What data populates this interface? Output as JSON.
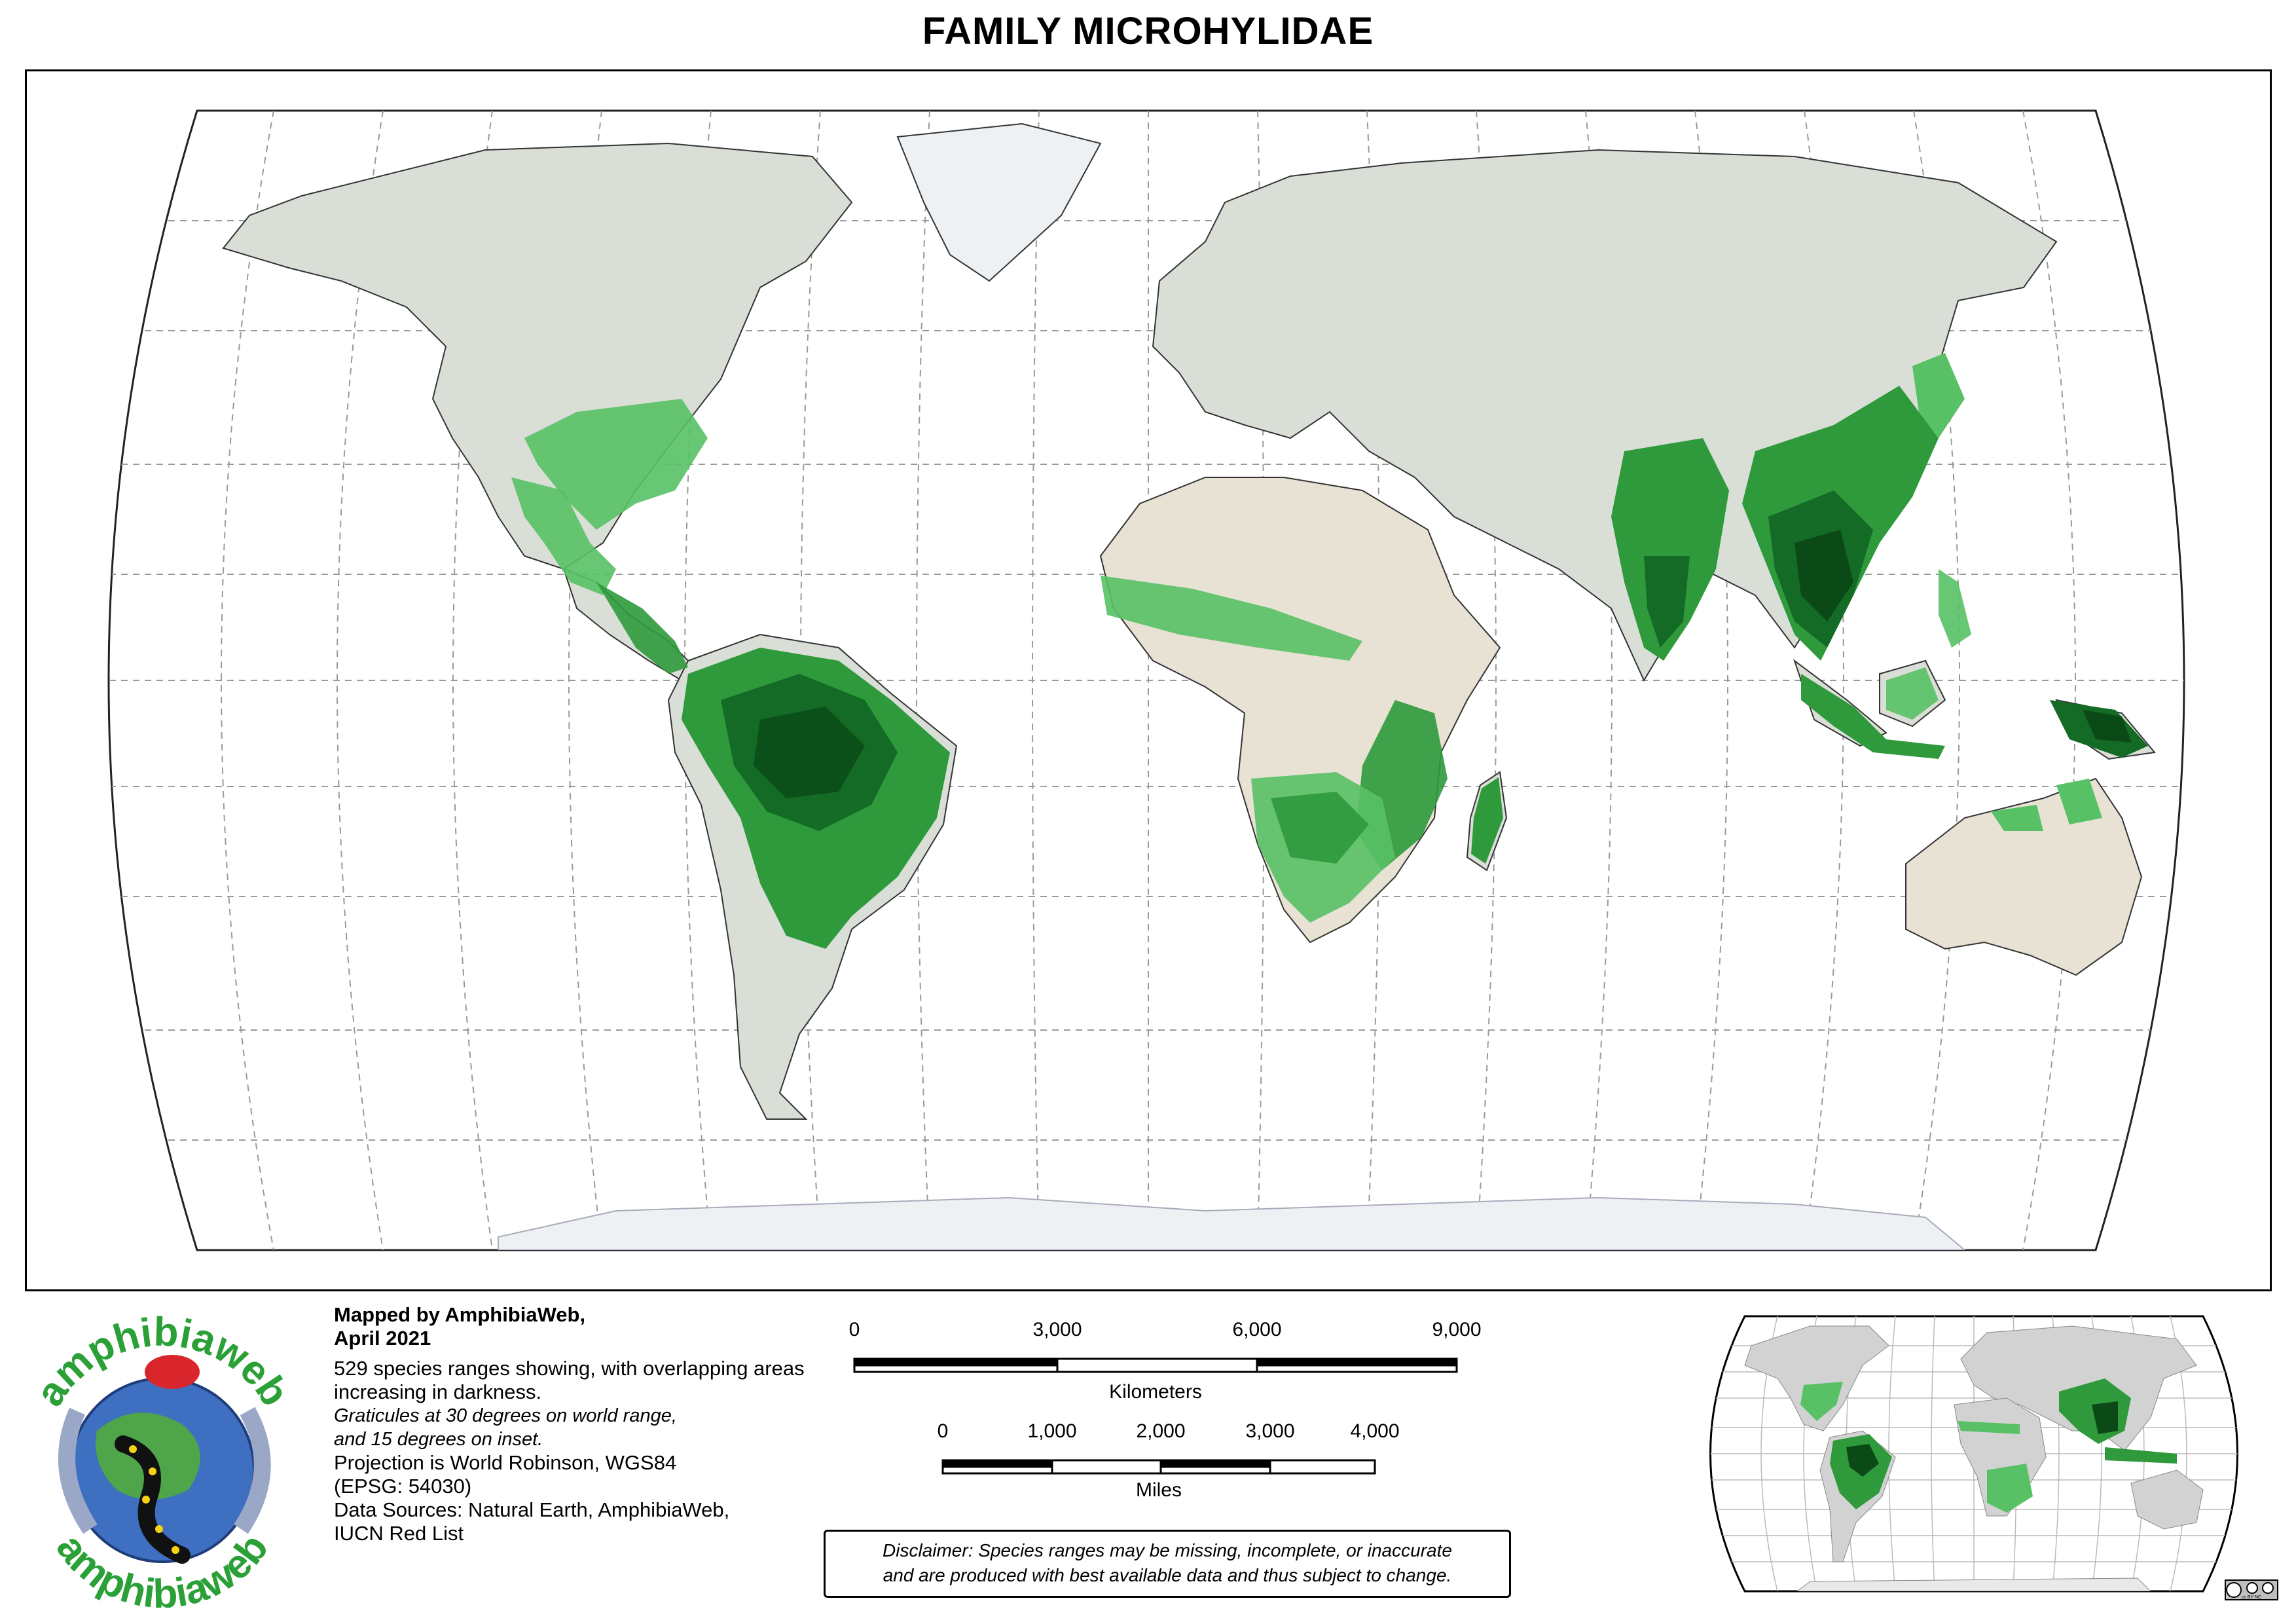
{
  "title": "FAMILY MICROHYLIDAE",
  "credits": {
    "mapped_by": "Mapped by AmphibiaWeb,",
    "date": "April 2021",
    "species_note": "529 species ranges showing, with overlapping areas increasing in darkness.",
    "graticule_note_1": "Graticules at 30 degrees on world range,",
    "graticule_note_2": "and 15 degrees on inset.",
    "projection_1": "Projection is World Robinson, WGS84",
    "projection_2": "(EPSG: 54030)",
    "sources_1": "Data Sources: Natural Earth, AmphibiaWeb,",
    "sources_2": "IUCN Red List"
  },
  "logo": {
    "wordmark_top": "amphibiaweb",
    "wordmark_bottom": "amphibiaweb"
  },
  "scale_bars": {
    "km_ticks": [
      "0",
      "3,000",
      "6,000",
      "9,000"
    ],
    "km_label": "Kilometers",
    "mi_ticks": [
      "0",
      "1,000",
      "2,000",
      "3,000",
      "4,000"
    ],
    "mi_label": "Miles"
  },
  "disclaimer": {
    "line1": "Disclaimer: Species ranges may be missing, incomplete, or inaccurate",
    "line2": "and are produced with best available data and thus subject to change."
  },
  "license": {
    "badge": "cc BY NC"
  },
  "legend_colors": {
    "land": "#d9ded6",
    "desert": "#e8e2d4",
    "ice": "#eef1f4",
    "range_light": "#58c165",
    "range_mid": "#2e9a3c",
    "range_dark": "#136b26",
    "range_darkest": "#0b4a17",
    "graticule": "#9a9a9a"
  }
}
